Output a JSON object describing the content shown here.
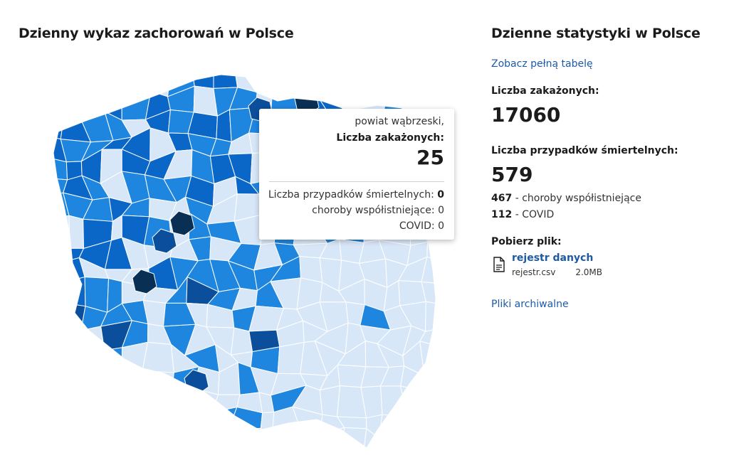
{
  "map_section": {
    "title": "Dzienny wykaz zachorowań w Polsce",
    "legend_colors": {
      "very_low": "#d8e7f8",
      "low": "#1f86e0",
      "medium": "#0b67c7",
      "high": "#0b4f9c",
      "very_high": "#0a2f55"
    }
  },
  "tooltip": {
    "region_name": "powiat wąbrzeski,",
    "infected_label": "Liczba zakażonych:",
    "infected_value": "25",
    "deaths_label": "Liczba przypadków śmiertelnych:",
    "deaths_value": "0",
    "comorbidities_label": "choroby współistniejące:",
    "comorbidities_value": "0",
    "covid_label": "COVID:",
    "covid_value": "0"
  },
  "stats": {
    "title": "Dzienne statystyki w Polsce",
    "full_table_link": "Zobacz pełną tabelę",
    "infected_label": "Liczba zakażonych:",
    "infected_value": "17060",
    "deaths_label": "Liczba przypadków śmiertelnych:",
    "deaths_value": "579",
    "comorbidities_count": "467",
    "comorbidities_text": "- choroby współistniejące",
    "covid_count": "112",
    "covid_text": "- COVID",
    "download_label": "Pobierz plik:",
    "file": {
      "name": "rejestr danych",
      "filename": "rejestr.csv",
      "size": "2.0MB",
      "icon": "file-icon"
    },
    "archive_link": "Pliki archiwalne"
  }
}
